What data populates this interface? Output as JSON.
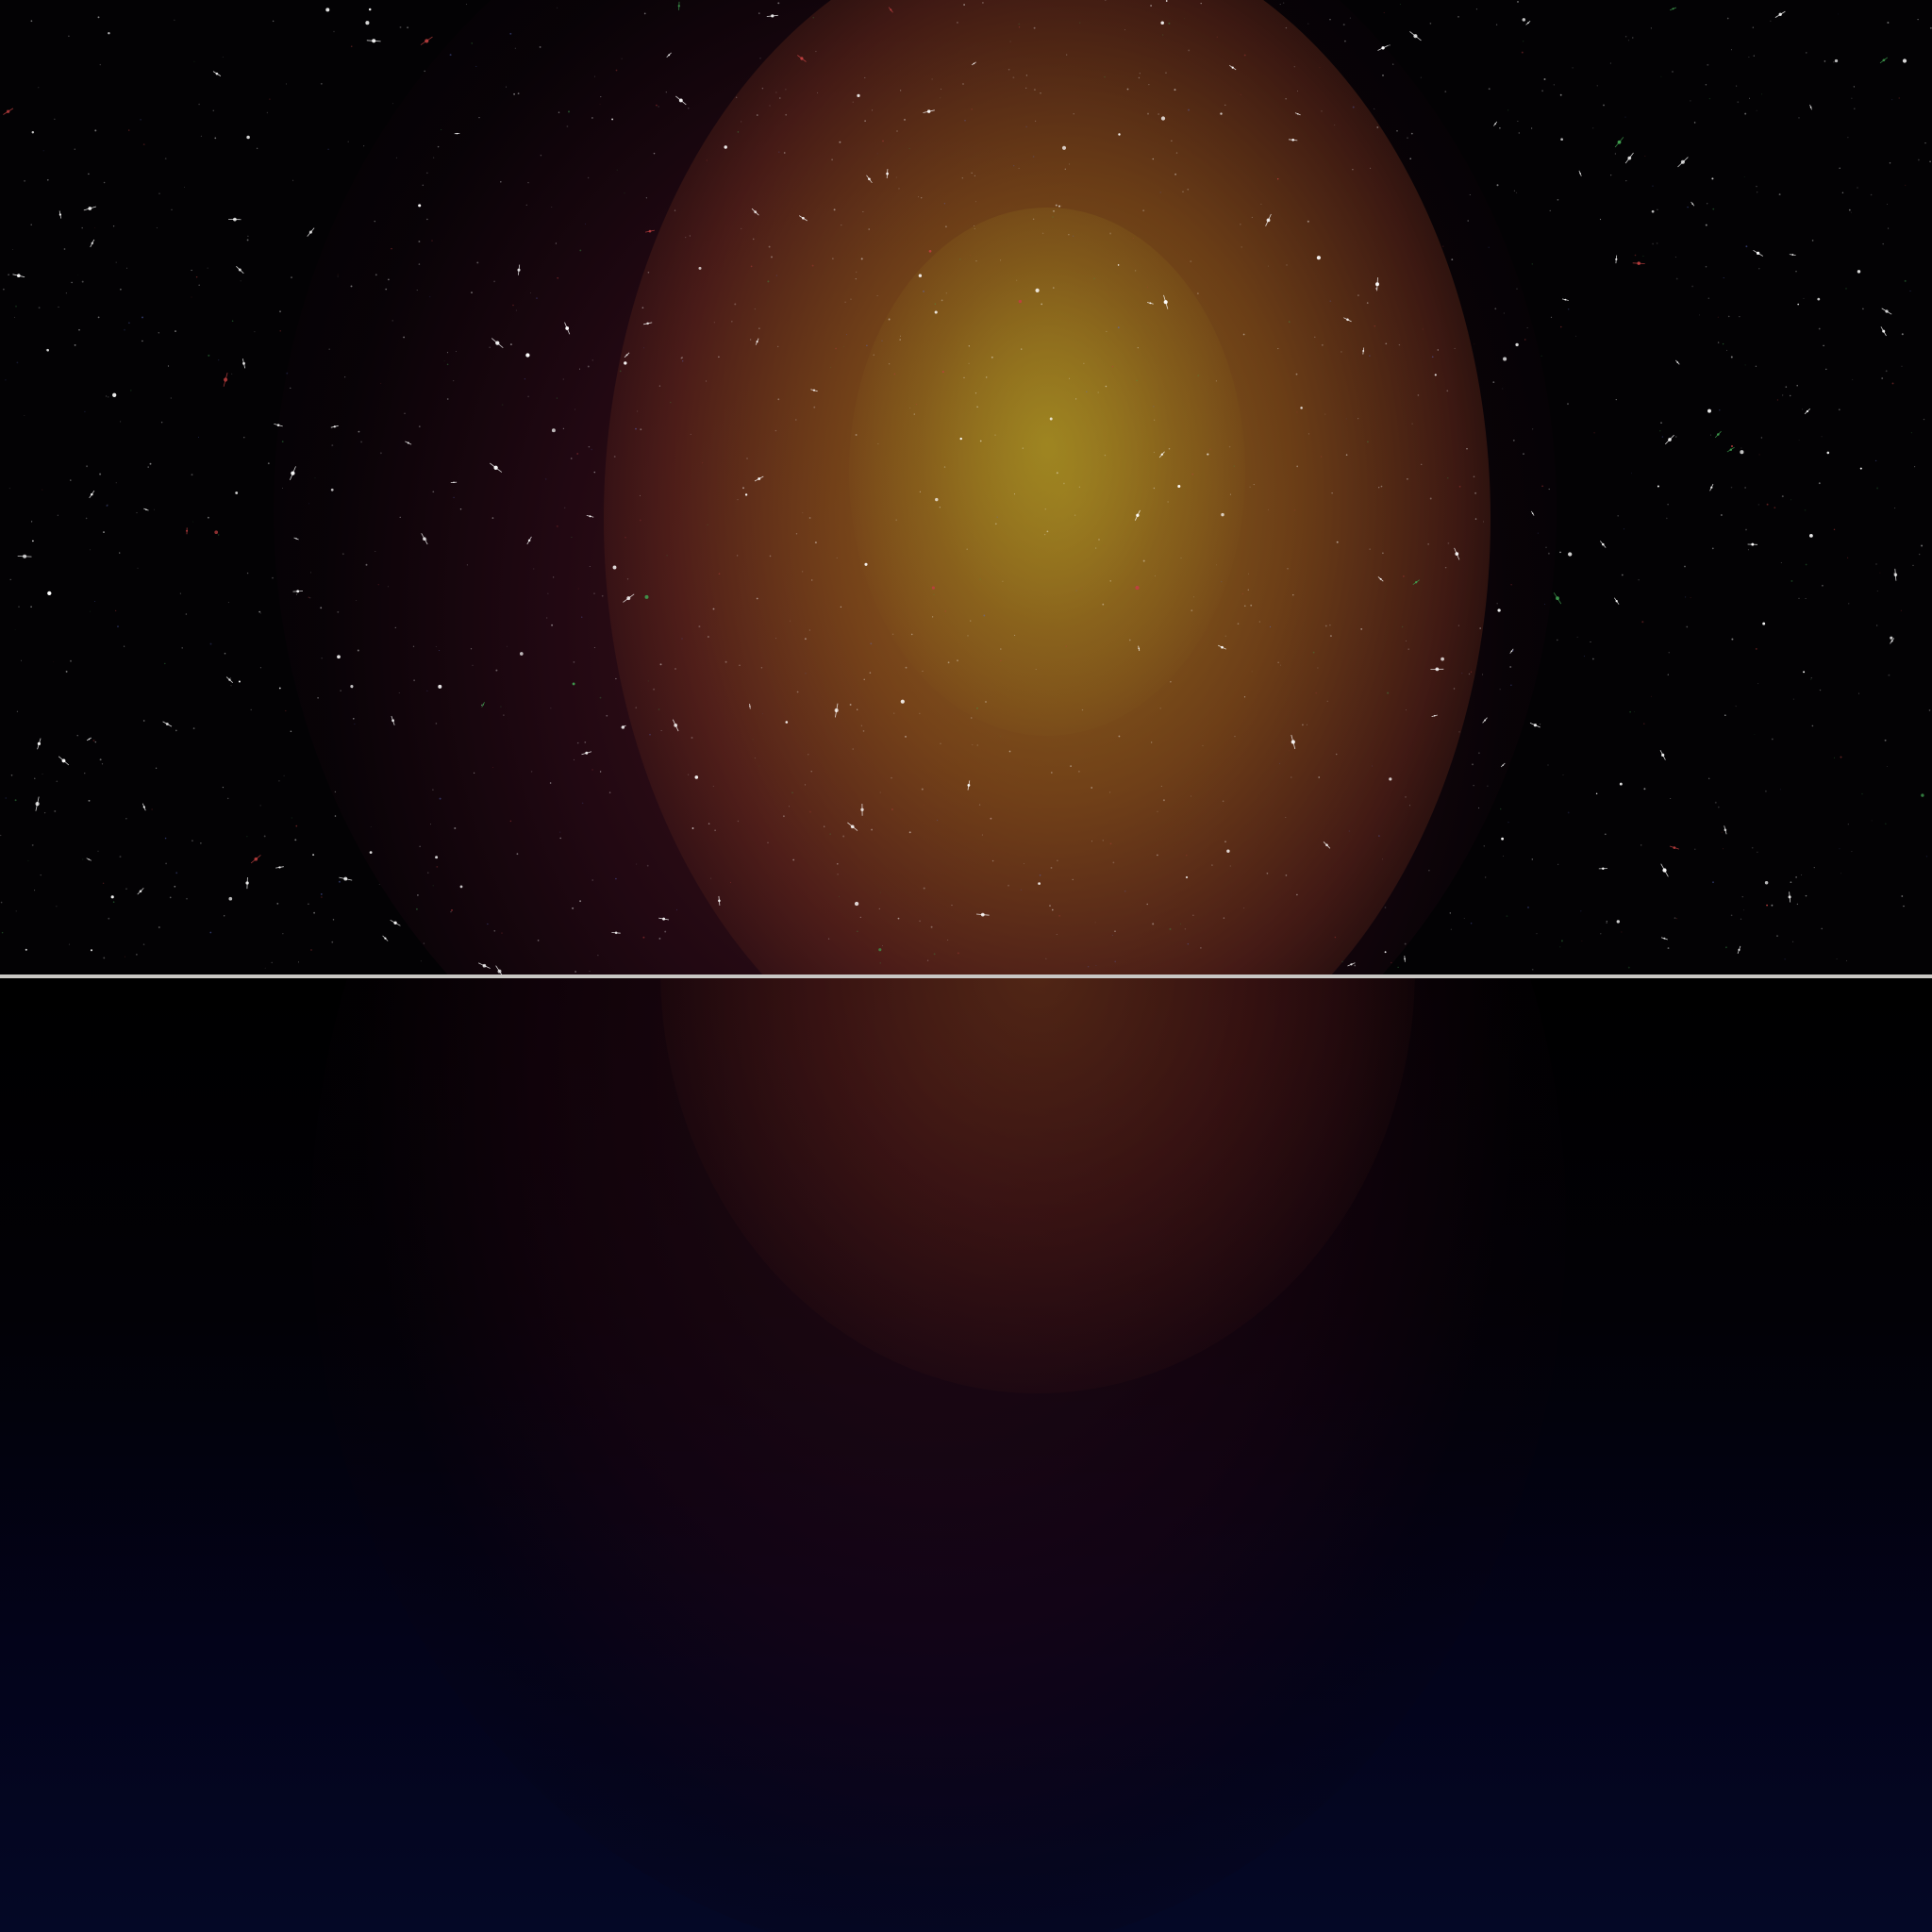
{
  "scene": {
    "description_tag": "",
    "colors": {
      "sky_background": "#030204",
      "glow_core": "#a3902a",
      "glow_mid": "#8c5519",
      "glow_outer": "#78282d",
      "horizon_line": "#c9c7c4",
      "reflection_top": "#000000",
      "reflection_bottom": "#040826",
      "star_white": "#ffffff",
      "star_red": "#c04040",
      "star_green": "#40a050",
      "star_blue": "#6070d0"
    }
  }
}
